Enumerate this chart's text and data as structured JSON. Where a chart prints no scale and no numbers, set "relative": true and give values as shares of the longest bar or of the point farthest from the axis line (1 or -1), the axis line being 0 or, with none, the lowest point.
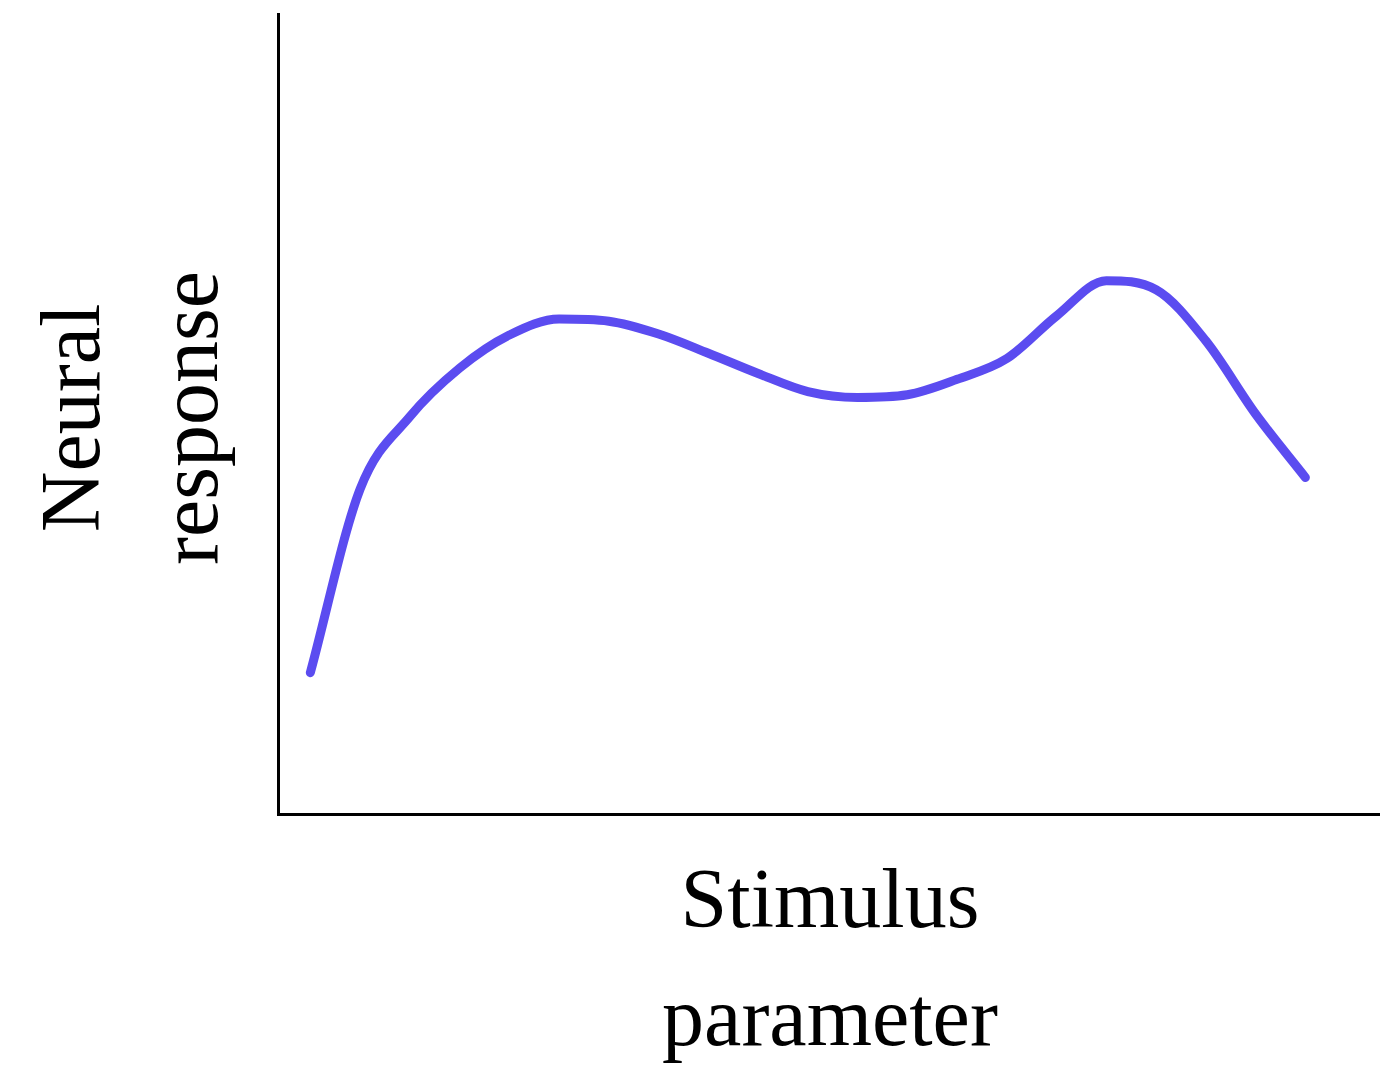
{
  "chart_data": {
    "type": "line",
    "relative": true,
    "xlabel": "Stimulus parameter",
    "ylabel": "Neural response",
    "categories": [
      null,
      null,
      null,
      null,
      null,
      null,
      null,
      null,
      null,
      null,
      null,
      null,
      null,
      null,
      null,
      null,
      null,
      null,
      null,
      null,
      null
    ],
    "series": [
      {
        "color": "#5b4cf0",
        "values": [
          0.265,
          0.609,
          0.745,
          0.836,
          0.898,
          0.928,
          0.924,
          0.9,
          0.864,
          0.826,
          0.792,
          0.781,
          0.786,
          0.815,
          0.854,
          0.934,
          1,
          0.983,
          0.887,
          0.75,
          0.631
        ]
      }
    ],
    "grid": false,
    "legend": false,
    "marker": "none",
    "line_style": "solid"
  }
}
